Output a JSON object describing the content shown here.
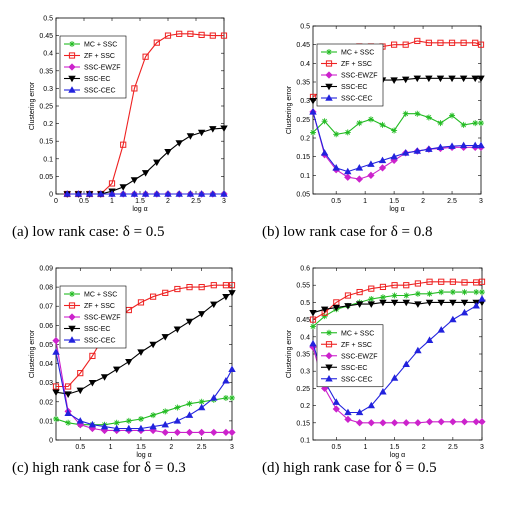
{
  "colors": {
    "MC + SSC": "#22bb22",
    "ZF + SSC": "#ee2222",
    "SSC-EWZF": "#cc22cc",
    "SSC-EC": "#000000",
    "SSC-CEC": "#2222dd"
  },
  "markers": {
    "MC + SSC": "star",
    "ZF + SSC": "square",
    "SSC-EWZF": "diamond",
    "SSC-EC": "tridown",
    "SSC-CEC": "triup"
  },
  "chart_data": [
    {
      "type": "line",
      "caption": "(a)  low rank case: δ = 0.5",
      "xlabel": "log α",
      "ylabel": "Clustering error",
      "xlim": [
        0,
        3
      ],
      "ylim": [
        0,
        0.5
      ],
      "xticks": [
        0,
        0.5,
        1,
        1.5,
        2,
        2.5,
        3
      ],
      "xticklabels": [
        "0",
        "0.5",
        "1",
        "1.5",
        "2",
        "2.5",
        "3"
      ],
      "yticks": [
        0,
        0.05,
        0.1,
        0.15,
        0.2,
        0.25,
        0.3,
        0.35,
        0.4,
        0.45,
        0.5
      ],
      "yticklabels": [
        "0",
        "0.05",
        "0.1",
        "0.15",
        "0.2",
        "0.25",
        "0.3",
        "0.35",
        "0.4",
        "0.45",
        "0.5"
      ],
      "legend": "upper-left",
      "x": [
        0.2,
        0.4,
        0.6,
        0.8,
        1.0,
        1.2,
        1.4,
        1.6,
        1.8,
        2.0,
        2.2,
        2.4,
        2.6,
        2.8,
        3.0
      ],
      "series": [
        {
          "name": "MC + SSC",
          "values": [
            0,
            0,
            0,
            0,
            0,
            0,
            0,
            0,
            0,
            0,
            0,
            0,
            0,
            0,
            0
          ]
        },
        {
          "name": "ZF + SSC",
          "values": [
            0,
            0,
            0,
            0,
            0.03,
            0.14,
            0.3,
            0.39,
            0.43,
            0.45,
            0.455,
            0.455,
            0.452,
            0.45,
            0.45
          ]
        },
        {
          "name": "SSC-EWZF",
          "values": [
            0,
            0,
            0,
            0,
            0,
            0,
            0,
            0,
            0,
            0,
            0,
            0,
            0,
            0,
            0
          ]
        },
        {
          "name": "SSC-EC",
          "values": [
            0,
            0,
            0,
            0,
            0.008,
            0.02,
            0.04,
            0.06,
            0.09,
            0.12,
            0.145,
            0.165,
            0.175,
            0.185,
            0.187
          ]
        },
        {
          "name": "SSC-CEC",
          "values": [
            0,
            0,
            0,
            0,
            0,
            0,
            0,
            0,
            0,
            0,
            0,
            0,
            0,
            0,
            0
          ]
        }
      ]
    },
    {
      "type": "line",
      "caption": "(b)  low rank case for δ = 0.8",
      "xlabel": "log α",
      "ylabel": "Clustering error",
      "xlim": [
        0.1,
        3
      ],
      "ylim": [
        0.05,
        0.5
      ],
      "xticks": [
        0.5,
        1,
        1.5,
        2,
        2.5,
        3
      ],
      "xticklabels": [
        "0.5",
        "1",
        "1.5",
        "2",
        "2.5",
        "3"
      ],
      "yticks": [
        0.05,
        0.1,
        0.15,
        0.2,
        0.25,
        0.3,
        0.35,
        0.4,
        0.45,
        0.5
      ],
      "yticklabels": [
        "0.05",
        "0.1",
        "0.15",
        "0.2",
        "0.25",
        "0.3",
        "0.35",
        "0.4",
        "0.45",
        "0.5"
      ],
      "legend": "upper-left",
      "x": [
        0.1,
        0.3,
        0.5,
        0.7,
        0.9,
        1.1,
        1.3,
        1.5,
        1.7,
        1.9,
        2.1,
        2.3,
        2.5,
        2.7,
        2.9,
        3.0
      ],
      "series": [
        {
          "name": "MC + SSC",
          "values": [
            0.215,
            0.245,
            0.21,
            0.215,
            0.24,
            0.25,
            0.235,
            0.22,
            0.265,
            0.265,
            0.255,
            0.24,
            0.26,
            0.235,
            0.24,
            0.24
          ]
        },
        {
          "name": "ZF + SSC",
          "values": [
            0.31,
            0.33,
            0.43,
            0.44,
            0.445,
            0.445,
            0.445,
            0.45,
            0.45,
            0.46,
            0.455,
            0.455,
            0.455,
            0.455,
            0.455,
            0.45
          ]
        },
        {
          "name": "SSC-EWZF",
          "values": [
            0.27,
            0.155,
            0.115,
            0.095,
            0.09,
            0.1,
            0.12,
            0.14,
            0.16,
            0.165,
            0.17,
            0.172,
            0.175,
            0.175,
            0.175,
            0.175
          ]
        },
        {
          "name": "SSC-EC",
          "values": [
            0.3,
            0.32,
            0.33,
            0.34,
            0.345,
            0.35,
            0.355,
            0.355,
            0.357,
            0.36,
            0.36,
            0.36,
            0.36,
            0.36,
            0.36,
            0.36
          ]
        },
        {
          "name": "SSC-CEC",
          "values": [
            0.27,
            0.16,
            0.12,
            0.11,
            0.12,
            0.13,
            0.14,
            0.15,
            0.16,
            0.165,
            0.17,
            0.175,
            0.178,
            0.18,
            0.18,
            0.18
          ]
        }
      ]
    },
    {
      "type": "line",
      "caption": "(c)  high rank case for δ = 0.3",
      "xlabel": "log α",
      "ylabel": "Clustering error",
      "xlim": [
        0.1,
        3
      ],
      "ylim": [
        0,
        0.09
      ],
      "xticks": [
        0.5,
        1,
        1.5,
        2,
        2.5,
        3
      ],
      "xticklabels": [
        "0.5",
        "1",
        "1.5",
        "2",
        "2.5",
        "3"
      ],
      "yticks": [
        0,
        0.01,
        0.02,
        0.03,
        0.04,
        0.05,
        0.06,
        0.07,
        0.08,
        0.09
      ],
      "yticklabels": [
        "0",
        "0.01",
        "0.02",
        "0.03",
        "0.04",
        "0.05",
        "0.06",
        "0.07",
        "0.08",
        "0.09"
      ],
      "legend": "upper-left",
      "x": [
        0.1,
        0.3,
        0.5,
        0.7,
        0.9,
        1.1,
        1.3,
        1.5,
        1.7,
        1.9,
        2.1,
        2.3,
        2.5,
        2.7,
        2.9,
        3.0
      ],
      "series": [
        {
          "name": "MC + SSC",
          "values": [
            0.011,
            0.009,
            0.008,
            0.008,
            0.008,
            0.009,
            0.01,
            0.011,
            0.013,
            0.015,
            0.017,
            0.019,
            0.02,
            0.021,
            0.022,
            0.022
          ]
        },
        {
          "name": "ZF + SSC",
          "values": [
            0.028,
            0.028,
            0.035,
            0.044,
            0.055,
            0.063,
            0.068,
            0.072,
            0.075,
            0.077,
            0.079,
            0.08,
            0.08,
            0.081,
            0.081,
            0.081
          ]
        },
        {
          "name": "SSC-EWZF",
          "values": [
            0.052,
            0.015,
            0.008,
            0.006,
            0.005,
            0.005,
            0.005,
            0.005,
            0.005,
            0.004,
            0.004,
            0.004,
            0.004,
            0.004,
            0.004,
            0.004
          ]
        },
        {
          "name": "SSC-EC",
          "values": [
            0.025,
            0.024,
            0.026,
            0.03,
            0.033,
            0.037,
            0.041,
            0.046,
            0.05,
            0.054,
            0.058,
            0.062,
            0.066,
            0.071,
            0.075,
            0.077
          ]
        },
        {
          "name": "SSC-CEC",
          "values": [
            0.046,
            0.014,
            0.01,
            0.008,
            0.007,
            0.006,
            0.006,
            0.006,
            0.007,
            0.008,
            0.01,
            0.013,
            0.017,
            0.022,
            0.031,
            0.037
          ]
        }
      ]
    },
    {
      "type": "line",
      "caption": "(d)  high rank case for δ = 0.5",
      "xlabel": "log α",
      "ylabel": "Clustering error",
      "xlim": [
        0.1,
        3
      ],
      "ylim": [
        0.1,
        0.6
      ],
      "xticks": [
        0.5,
        1,
        1.5,
        2,
        2.5,
        3
      ],
      "xticklabels": [
        "0.5",
        "1",
        "1.5",
        "2",
        "2.5",
        "3"
      ],
      "yticks": [
        0.1,
        0.15,
        0.2,
        0.25,
        0.3,
        0.35,
        0.4,
        0.45,
        0.5,
        0.55,
        0.6
      ],
      "yticklabels": [
        "0.1",
        "0.15",
        "0.2",
        "0.25",
        "0.3",
        "0.35",
        "0.4",
        "0.45",
        "0.5",
        "0.55",
        "0.6"
      ],
      "legend": "center-left",
      "x": [
        0.1,
        0.3,
        0.5,
        0.7,
        0.9,
        1.1,
        1.3,
        1.5,
        1.7,
        1.9,
        2.1,
        2.3,
        2.5,
        2.7,
        2.9,
        3.0
      ],
      "series": [
        {
          "name": "MC + SSC",
          "values": [
            0.43,
            0.46,
            0.48,
            0.49,
            0.5,
            0.51,
            0.515,
            0.52,
            0.52,
            0.525,
            0.525,
            0.53,
            0.53,
            0.53,
            0.53,
            0.53
          ]
        },
        {
          "name": "ZF + SSC",
          "values": [
            0.45,
            0.47,
            0.5,
            0.52,
            0.53,
            0.54,
            0.545,
            0.55,
            0.55,
            0.555,
            0.56,
            0.56,
            0.56,
            0.558,
            0.558,
            0.56
          ]
        },
        {
          "name": "SSC-EWZF",
          "values": [
            0.37,
            0.25,
            0.19,
            0.16,
            0.15,
            0.15,
            0.15,
            0.15,
            0.15,
            0.15,
            0.153,
            0.153,
            0.153,
            0.153,
            0.153,
            0.153
          ]
        },
        {
          "name": "SSC-EC",
          "values": [
            0.47,
            0.48,
            0.485,
            0.49,
            0.495,
            0.495,
            0.5,
            0.5,
            0.5,
            0.495,
            0.5,
            0.5,
            0.5,
            0.5,
            0.5,
            0.5
          ]
        },
        {
          "name": "SSC-CEC",
          "values": [
            0.38,
            0.27,
            0.21,
            0.18,
            0.18,
            0.2,
            0.24,
            0.28,
            0.32,
            0.36,
            0.39,
            0.42,
            0.45,
            0.47,
            0.49,
            0.51
          ]
        }
      ]
    }
  ]
}
